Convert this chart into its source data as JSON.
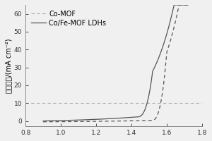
{
  "xlim": [
    0.8,
    1.8
  ],
  "ylim": [
    -3,
    65
  ],
  "xlabel": "",
  "ylabel": "电流密度/(mA cm⁻²)",
  "xticks": [
    0.8,
    1.0,
    1.2,
    1.4,
    1.6,
    1.8
  ],
  "yticks": [
    0,
    10,
    20,
    30,
    40,
    50,
    60
  ],
  "hline_y": 10,
  "hline_color": "#aaaaaa",
  "legend_labels": [
    "Co-MOF",
    "Co/Fe-MOF LDHs"
  ],
  "line_color": "#555555",
  "background_color": "#f0f0f0",
  "legend_fontsize": 7,
  "axis_fontsize": 7,
  "tick_fontsize": 6.5
}
